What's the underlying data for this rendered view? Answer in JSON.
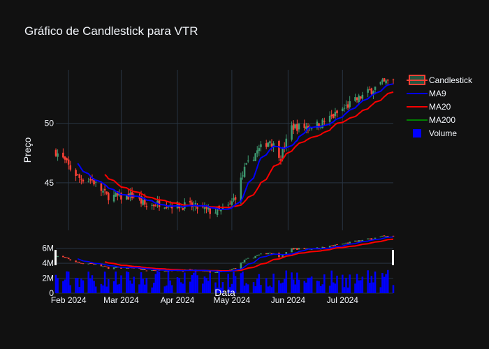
{
  "chart_data": {
    "type": "candlestick",
    "title": "Gráfico de Candlestick para VTR",
    "ylabel": "Preço",
    "xlabel": "Data",
    "x_ticks": [
      "Feb 2024",
      "Mar 2024",
      "Apr 2024",
      "May 2024",
      "Jun 2024",
      "Jul 2024"
    ],
    "x_range": [
      "2024-01-25",
      "2024-07-29"
    ],
    "main_panel": {
      "ylim": [
        41.0,
        54.5
      ],
      "y_ticks": [
        45,
        50
      ]
    },
    "overview_panel": {
      "volume_ylim": [
        0,
        7000000
      ],
      "y_ticks": [
        "0",
        "2M",
        "4M",
        "6M"
      ]
    },
    "legend": [
      {
        "name": "Candlestick",
        "color": "#3D9970",
        "kind": "candlestick"
      },
      {
        "name": "MA9",
        "color": "#0000ff",
        "kind": "line"
      },
      {
        "name": "MA20",
        "color": "#ff0000",
        "kind": "line"
      },
      {
        "name": "MA200",
        "color": "#008000",
        "kind": "line"
      },
      {
        "name": "Volume",
        "color": "#0000ff",
        "kind": "bar"
      }
    ],
    "colors": {
      "increasing": "#3D9970",
      "decreasing": "#FF4136",
      "ma9": "#0000ff",
      "ma20": "#ff0000",
      "ma200": "#008000",
      "volume": "#0000ff",
      "background": "#111111",
      "grid": "#283442"
    },
    "close_anchors": [
      [
        "2024-01-25",
        47.6
      ],
      [
        "2024-01-29",
        47.0
      ],
      [
        "2024-02-02",
        46.2
      ],
      [
        "2024-02-07",
        45.4
      ],
      [
        "2024-02-14",
        45.2
      ],
      [
        "2024-02-22",
        43.9
      ],
      [
        "2024-03-01",
        43.8
      ],
      [
        "2024-03-08",
        43.9
      ],
      [
        "2024-03-15",
        43.0
      ],
      [
        "2024-03-22",
        43.3
      ],
      [
        "2024-04-01",
        43.1
      ],
      [
        "2024-04-10",
        43.0
      ],
      [
        "2024-04-19",
        42.6
      ],
      [
        "2024-04-25",
        42.6
      ],
      [
        "2024-04-30",
        43.1
      ],
      [
        "2024-05-03",
        43.9
      ],
      [
        "2024-05-08",
        46.1
      ],
      [
        "2024-05-14",
        47.5
      ],
      [
        "2024-05-22",
        48.6
      ],
      [
        "2024-05-28",
        47.2
      ],
      [
        "2024-06-03",
        49.7
      ],
      [
        "2024-06-10",
        49.7
      ],
      [
        "2024-06-18",
        49.9
      ],
      [
        "2024-06-26",
        50.6
      ],
      [
        "2024-07-03",
        51.4
      ],
      [
        "2024-07-12",
        52.3
      ],
      [
        "2024-07-22",
        53.3
      ],
      [
        "2024-07-29",
        53.6
      ]
    ]
  }
}
